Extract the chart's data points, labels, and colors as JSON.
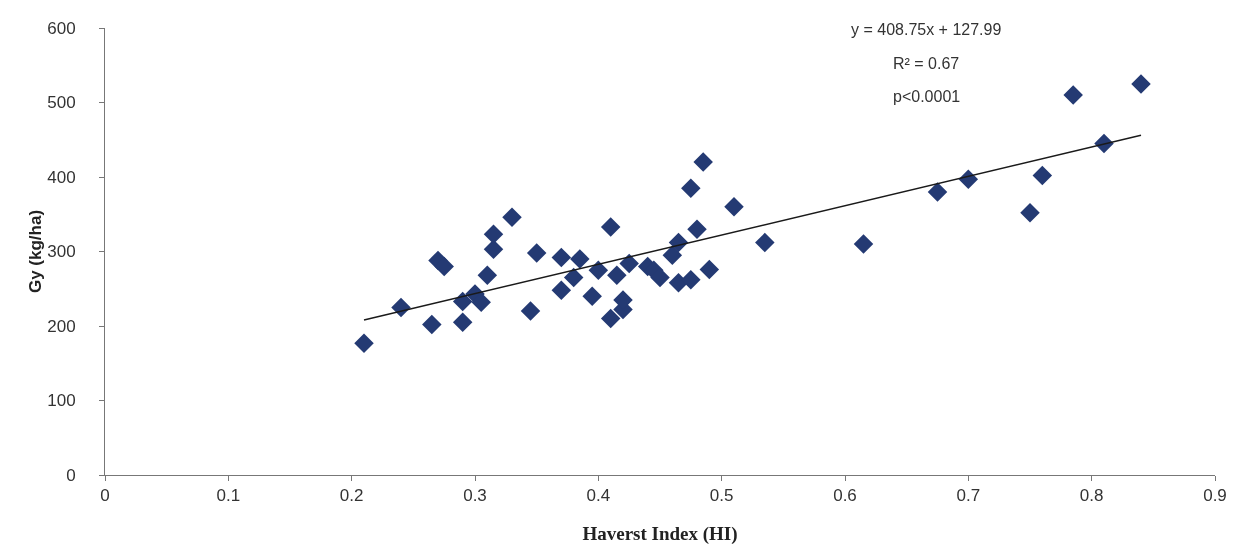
{
  "chart_data": {
    "type": "scatter",
    "xlabel": "Haverst Index (HI)",
    "ylabel": "Gy (kg/ha)",
    "xlim": [
      0,
      0.9
    ],
    "ylim": [
      0,
      600
    ],
    "xticks": [
      0,
      0.1,
      0.2,
      0.3,
      0.4,
      0.5,
      0.6,
      0.7,
      0.8,
      0.9
    ],
    "yticks": [
      0,
      100,
      200,
      300,
      400,
      500,
      600
    ],
    "grid": false,
    "annotations": [
      "y = 408.75x + 127.99",
      "R² = 0.67",
      "p<0.0001"
    ],
    "series": [
      {
        "marker": "diamond",
        "color": "#243a73",
        "x": [
          0.21,
          0.24,
          0.265,
          0.27,
          0.275,
          0.29,
          0.29,
          0.3,
          0.305,
          0.31,
          0.315,
          0.315,
          0.33,
          0.345,
          0.35,
          0.37,
          0.37,
          0.38,
          0.385,
          0.395,
          0.4,
          0.41,
          0.41,
          0.415,
          0.42,
          0.42,
          0.425,
          0.44,
          0.445,
          0.45,
          0.46,
          0.465,
          0.465,
          0.475,
          0.475,
          0.48,
          0.485,
          0.49,
          0.51,
          0.535,
          0.615,
          0.675,
          0.7,
          0.75,
          0.76,
          0.785,
          0.81,
          0.84
        ],
        "values": [
          177,
          225,
          202,
          288,
          280,
          205,
          233,
          243,
          232,
          268,
          303,
          323,
          346,
          220,
          298,
          248,
          292,
          265,
          290,
          240,
          275,
          210,
          333,
          268,
          222,
          235,
          284,
          280,
          275,
          265,
          295,
          258,
          312,
          262,
          385,
          330,
          420,
          276,
          360,
          312,
          310,
          380,
          397,
          352,
          402,
          510,
          445,
          525
        ]
      },
      {
        "type": "line",
        "color": "#1a1a1a",
        "line_style": "solid",
        "x": [
          0.21,
          0.84
        ],
        "values": [
          208,
          456
        ]
      }
    ]
  }
}
